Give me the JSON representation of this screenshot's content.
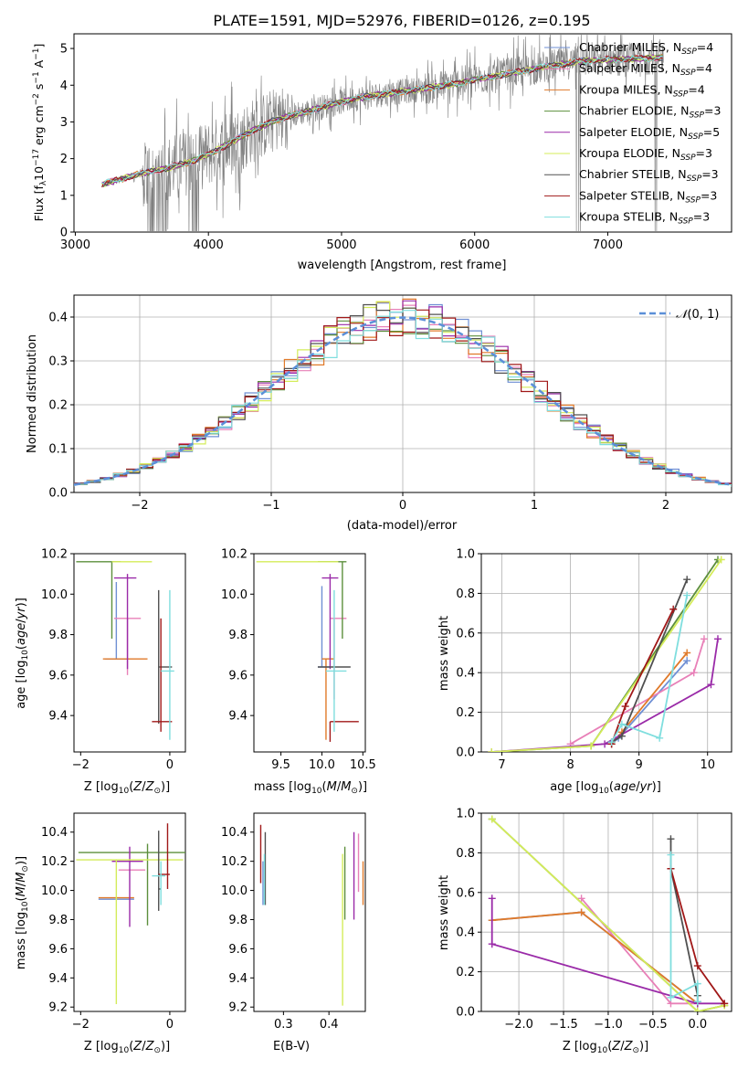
{
  "colors": {
    "chabrier_miles": "#6f8fd4",
    "salpeter_miles": "#e880b8",
    "kroupa_miles": "#e07a2a",
    "chabrier_elodie": "#5c8f3c",
    "salpeter_elodie": "#9a2aa8",
    "kroupa_elodie": "#d4ec5a",
    "chabrier_stelib": "#505050",
    "salpeter_stelib": "#a01818",
    "kroupa_stelib": "#7fdede",
    "data_spectrum": "#808080",
    "gaussian": "#5b8fd8"
  },
  "chart_data": [
    {
      "id": "spectrum",
      "type": "line",
      "title": "PLATE=1591, MJD=52976, FIBERID=0126, z=0.195",
      "xlabel": "wavelength [Angstrom, rest frame]",
      "ylabel": "Flux [f_λ 10^-17 erg cm^-2 s^-1 A^-1]",
      "xlim": [
        2990,
        7930
      ],
      "ylim": [
        0,
        5.4
      ],
      "xticks": [
        "3000",
        "4000",
        "5000",
        "6000",
        "7000"
      ],
      "yticks": [
        "0",
        "1",
        "2",
        "3",
        "4",
        "5"
      ],
      "grid": false,
      "legend_position": "top-right",
      "legend": [
        {
          "label": "Chabrier MILES, N",
          "sub": "SSP",
          "tail": "=4"
        },
        {
          "label": "Salpeter MILES, N",
          "sub": "SSP",
          "tail": "=4"
        },
        {
          "label": "Kroupa MILES, N",
          "sub": "SSP",
          "tail": "=4"
        },
        {
          "label": "Chabrier ELODIE, N",
          "sub": "SSP",
          "tail": "=3"
        },
        {
          "label": "Salpeter ELODIE, N",
          "sub": "SSP",
          "tail": "=5"
        },
        {
          "label": "Kroupa ELODIE, N",
          "sub": "SSP",
          "tail": "=3"
        },
        {
          "label": "Chabrier STELIB, N",
          "sub": "SSP",
          "tail": "=3"
        },
        {
          "label": "Salpeter STELIB, N",
          "sub": "SSP",
          "tail": "=3"
        },
        {
          "label": "Kroupa STELIB, N",
          "sub": "SSP",
          "tail": "=3"
        }
      ],
      "continuum": {
        "x": [
          3200,
          3350,
          3500,
          3700,
          3900,
          4100,
          4300,
          4500,
          4800,
          5000,
          5200,
          5500,
          5800,
          6000,
          6300,
          6600,
          6800,
          7000,
          7200,
          7400
        ],
        "y": [
          1.3,
          1.45,
          1.6,
          1.75,
          1.95,
          2.3,
          2.7,
          3.05,
          3.35,
          3.55,
          3.7,
          3.85,
          4.0,
          4.15,
          4.35,
          4.55,
          4.65,
          4.7,
          4.72,
          4.75
        ]
      }
    },
    {
      "id": "residuals",
      "type": "line",
      "xlabel": "(data-model)/error",
      "ylabel": "Normed distribution",
      "xlim": [
        -2.5,
        2.5
      ],
      "ylim": [
        0,
        0.45
      ],
      "xticks": [
        "−2",
        "−1",
        "0",
        "1",
        "2"
      ],
      "yticks": [
        "0.0",
        "0.1",
        "0.2",
        "0.3",
        "0.4"
      ],
      "grid": true,
      "legend_position": "top-right",
      "legend": [
        {
          "label": "𝒩(0, 1)"
        }
      ]
    },
    {
      "id": "age_vs_z",
      "type": "scatter",
      "xlabel": "Z [log10(Z/Z⊙)]",
      "ylabel": "age [log10(age/yr)]",
      "xlim": [
        -2.15,
        0.35
      ],
      "ylim": [
        9.22,
        10.2
      ],
      "xticks": [
        "−2",
        "0"
      ],
      "yticks": [
        "9.4",
        "9.6",
        "9.8",
        "10.0",
        "10.2"
      ],
      "grid": false,
      "points": [
        {
          "m": "chabrier_miles",
          "x": -1.2,
          "y": 9.68,
          "xe": [
            0.25,
            0.25
          ],
          "ye": [
            0.0,
            0.38
          ]
        },
        {
          "m": "salpeter_miles",
          "x": -0.95,
          "y": 9.88,
          "xe": [
            0.3,
            0.3
          ],
          "ye": [
            0.28,
            0.0
          ]
        },
        {
          "m": "kroupa_miles",
          "x": -1.1,
          "y": 9.68,
          "xe": [
            0.4,
            0.6
          ],
          "ye": [
            0.0,
            0.0
          ]
        },
        {
          "m": "chabrier_elodie",
          "x": -1.3,
          "y": 10.16,
          "xe": [
            0.8,
            0.2
          ],
          "ye": [
            0.38,
            0.0
          ]
        },
        {
          "m": "salpeter_elodie",
          "x": -0.95,
          "y": 10.08,
          "xe": [
            0.3,
            0.2
          ],
          "ye": [
            0.45,
            0.02
          ]
        },
        {
          "m": "kroupa_elodie",
          "x": -0.7,
          "y": 10.16,
          "xe": [
            0.6,
            0.3
          ],
          "ye": [
            0.0,
            0.0
          ]
        },
        {
          "m": "chabrier_stelib",
          "x": -0.25,
          "y": 9.64,
          "xe": [
            0.0,
            0.3
          ],
          "ye": [
            0.28,
            0.38
          ]
        },
        {
          "m": "salpeter_stelib",
          "x": -0.2,
          "y": 9.37,
          "xe": [
            0.2,
            0.25
          ],
          "ye": [
            0.05,
            0.51
          ]
        },
        {
          "m": "kroupa_stelib",
          "x": 0.0,
          "y": 9.62,
          "xe": [
            0.2,
            0.1
          ],
          "ye": [
            0.34,
            0.4
          ]
        }
      ]
    },
    {
      "id": "age_vs_mass",
      "type": "scatter",
      "xlabel": "mass [log10(M/M⊙)]",
      "ylabel": "",
      "xlim": [
        9.17,
        10.53
      ],
      "ylim": [
        9.22,
        10.2
      ],
      "xticks": [
        "9.5",
        "10.0",
        "10.5"
      ],
      "yticks": [
        "9.4",
        "9.6",
        "9.8",
        "10.0",
        "10.2"
      ],
      "grid": false,
      "points": [
        {
          "m": "chabrier_miles",
          "x": 10.0,
          "y": 9.64,
          "xe": [
            0.05,
            0.1
          ],
          "ye": [
            0.0,
            0.4
          ]
        },
        {
          "m": "salpeter_miles",
          "x": 10.15,
          "y": 9.88,
          "xe": [
            0.05,
            0.15
          ],
          "ye": [
            0.4,
            0.0
          ]
        },
        {
          "m": "kroupa_miles",
          "x": 10.05,
          "y": 9.68,
          "xe": [
            0.05,
            0.1
          ],
          "ye": [
            0.4,
            0.0
          ]
        },
        {
          "m": "chabrier_elodie",
          "x": 10.25,
          "y": 10.16,
          "xe": [
            0.3,
            0.05
          ],
          "ye": [
            0.38,
            0.0
          ]
        },
        {
          "m": "salpeter_elodie",
          "x": 10.1,
          "y": 10.08,
          "xe": [
            0.1,
            0.1
          ],
          "ye": [
            0.45,
            0.02
          ]
        },
        {
          "m": "kroupa_elodie",
          "x": 10.2,
          "y": 10.16,
          "xe": [
            1.0,
            0.0
          ],
          "ye": [
            0.0,
            0.0
          ]
        },
        {
          "m": "chabrier_stelib",
          "x": 10.1,
          "y": 9.64,
          "xe": [
            0.15,
            0.25
          ],
          "ye": [
            0.0,
            0.0
          ]
        },
        {
          "m": "salpeter_stelib",
          "x": 10.1,
          "y": 9.37,
          "xe": [
            0.0,
            0.35
          ],
          "ye": [
            0.1,
            0.0
          ]
        },
        {
          "m": "kroupa_stelib",
          "x": 10.15,
          "y": 9.62,
          "xe": [
            0.1,
            0.15
          ],
          "ye": [
            0.3,
            0.4
          ]
        }
      ]
    },
    {
      "id": "mass_weight_vs_age",
      "type": "line",
      "xlabel": "age [log10(age/yr)]",
      "ylabel": "mass weight",
      "xlim": [
        6.7,
        10.35
      ],
      "ylim": [
        0,
        1.0
      ],
      "xticks": [
        "7",
        "8",
        "9",
        "10"
      ],
      "yticks": [
        "0.0",
        "0.2",
        "0.4",
        "0.6",
        "0.8",
        "1.0"
      ],
      "grid": true,
      "series": [
        {
          "m": "chabrier_miles",
          "x": [
            8.6,
            8.7,
            9.7
          ],
          "y": [
            0.04,
            0.07,
            0.46
          ]
        },
        {
          "m": "salpeter_miles",
          "x": [
            8.0,
            9.8,
            9.95
          ],
          "y": [
            0.04,
            0.4,
            0.57
          ]
        },
        {
          "m": "kroupa_miles",
          "x": [
            8.6,
            8.75,
            9.7
          ],
          "y": [
            0.04,
            0.1,
            0.5
          ]
        },
        {
          "m": "chabrier_elodie",
          "x": [
            6.85,
            8.3,
            10.15
          ],
          "y": [
            0.0,
            0.03,
            0.97
          ]
        },
        {
          "m": "salpeter_elodie",
          "x": [
            6.85,
            8.5,
            10.05,
            10.15
          ],
          "y": [
            0.0,
            0.04,
            0.34,
            0.57
          ]
        },
        {
          "m": "kroupa_elodie",
          "x": [
            6.85,
            8.3,
            10.2
          ],
          "y": [
            0.0,
            0.03,
            0.97
          ]
        },
        {
          "m": "chabrier_stelib",
          "x": [
            8.6,
            8.75,
            9.7
          ],
          "y": [
            0.05,
            0.08,
            0.87
          ]
        },
        {
          "m": "salpeter_stelib",
          "x": [
            8.6,
            8.8,
            9.5
          ],
          "y": [
            0.04,
            0.23,
            0.72
          ]
        },
        {
          "m": "kroupa_stelib",
          "x": [
            8.6,
            8.75,
            9.3,
            9.7
          ],
          "y": [
            0.05,
            0.14,
            0.07,
            0.79
          ]
        }
      ]
    },
    {
      "id": "mass_vs_z",
      "type": "scatter",
      "xlabel": "Z [log10(Z/Z⊙)]",
      "ylabel": "mass [log10(M/M⊙)]",
      "xlim": [
        -2.15,
        0.35
      ],
      "ylim": [
        9.17,
        10.53
      ],
      "xticks": [
        "−2",
        "0"
      ],
      "yticks": [
        "9.2",
        "9.4",
        "9.6",
        "9.8",
        "10.0",
        "10.2",
        "10.4"
      ],
      "grid": false,
      "points": [
        {
          "m": "chabrier_miles",
          "x": -1.1,
          "y": 9.94,
          "xe": [
            0.5,
            0.3
          ],
          "ye": [
            0.0,
            0.0
          ]
        },
        {
          "m": "salpeter_miles",
          "x": -0.75,
          "y": 10.14,
          "xe": [
            0.4,
            0.2
          ],
          "ye": [
            0.0,
            0.0
          ]
        },
        {
          "m": "kroupa_miles",
          "x": -1.1,
          "y": 9.95,
          "xe": [
            0.5,
            0.3
          ],
          "ye": [
            0.0,
            0.0
          ]
        },
        {
          "m": "chabrier_elodie",
          "x": -0.5,
          "y": 10.26,
          "xe": [
            1.55,
            0.85
          ],
          "ye": [
            0.5,
            0.06
          ]
        },
        {
          "m": "salpeter_elodie",
          "x": -0.9,
          "y": 10.2,
          "xe": [
            0.4,
            0.3
          ],
          "ye": [
            0.45,
            0.1
          ]
        },
        {
          "m": "kroupa_elodie",
          "x": -1.2,
          "y": 10.21,
          "xe": [
            0.9,
            1.5
          ],
          "ye": [
            0.99,
            0.0
          ]
        },
        {
          "m": "chabrier_stelib",
          "x": -0.25,
          "y": 10.01,
          "xe": [
            0.0,
            0.05
          ],
          "ye": [
            0.15,
            0.4
          ]
        },
        {
          "m": "salpeter_stelib",
          "x": -0.05,
          "y": 10.11,
          "xe": [
            0.2,
            0.05
          ],
          "ye": [
            0.1,
            0.35
          ]
        },
        {
          "m": "kroupa_stelib",
          "x": -0.2,
          "y": 10.1,
          "xe": [
            0.2,
            0.1
          ],
          "ye": [
            0.2,
            0.1
          ]
        }
      ]
    },
    {
      "id": "mass_vs_ebv",
      "type": "scatter",
      "xlabel": "E(B-V)",
      "ylabel": "",
      "xlim": [
        0.235,
        0.48
      ],
      "ylim": [
        9.17,
        10.53
      ],
      "xticks": [
        "0.3",
        "0.4"
      ],
      "yticks": [
        "9.2",
        "9.4",
        "9.6",
        "9.8",
        "10.0",
        "10.2",
        "10.4"
      ],
      "grid": false,
      "points": [
        {
          "m": "chabrier_miles",
          "x": 0.255,
          "y": 10.0,
          "xe": [
            0.0,
            0.0
          ],
          "ye": [
            0.1,
            0.2
          ]
        },
        {
          "m": "salpeter_miles",
          "x": 0.465,
          "y": 10.14,
          "xe": [
            0.0,
            0.0
          ],
          "ye": [
            0.15,
            0.25
          ]
        },
        {
          "m": "kroupa_miles",
          "x": 0.475,
          "y": 10.05,
          "xe": [
            0.0,
            0.0
          ],
          "ye": [
            0.15,
            0.15
          ]
        },
        {
          "m": "chabrier_elodie",
          "x": 0.435,
          "y": 10.2,
          "xe": [
            0.0,
            0.0
          ],
          "ye": [
            0.4,
            0.1
          ]
        },
        {
          "m": "salpeter_elodie",
          "x": 0.455,
          "y": 10.1,
          "xe": [
            0.0,
            0.0
          ],
          "ye": [
            0.3,
            0.3
          ]
        },
        {
          "m": "kroupa_elodie",
          "x": 0.43,
          "y": 10.2,
          "xe": [
            0.0,
            0.0
          ],
          "ye": [
            0.99,
            0.05
          ]
        },
        {
          "m": "chabrier_stelib",
          "x": 0.26,
          "y": 10.1,
          "xe": [
            0.0,
            0.0
          ],
          "ye": [
            0.2,
            0.3
          ]
        },
        {
          "m": "salpeter_stelib",
          "x": 0.25,
          "y": 10.2,
          "xe": [
            0.0,
            0.0
          ],
          "ye": [
            0.15,
            0.25
          ]
        },
        {
          "m": "kroupa_stelib",
          "x": 0.258,
          "y": 10.05,
          "xe": [
            0.0,
            0.0
          ],
          "ye": [
            0.15,
            0.2
          ]
        }
      ]
    },
    {
      "id": "mass_weight_vs_z",
      "type": "line",
      "xlabel": "Z [log10(Z/Z⊙)]",
      "ylabel": "mass weight",
      "xlim": [
        -2.42,
        0.38
      ],
      "ylim": [
        0,
        1.0
      ],
      "xticks": [
        "−2.0",
        "−1.5",
        "−1.0",
        "−0.5",
        "0.0"
      ],
      "yticks": [
        "0.0",
        "0.2",
        "0.4",
        "0.6",
        "0.8",
        "1.0"
      ],
      "grid": true,
      "series": [
        {
          "m": "chabrier_miles",
          "x": [
            -2.3,
            -1.3,
            0.0
          ],
          "y": [
            0.46,
            0.5,
            0.04
          ]
        },
        {
          "m": "salpeter_miles",
          "x": [
            -1.3,
            -0.3,
            0.0
          ],
          "y": [
            0.57,
            0.04,
            0.04
          ]
        },
        {
          "m": "kroupa_miles",
          "x": [
            -2.3,
            -1.3,
            0.0
          ],
          "y": [
            0.46,
            0.5,
            0.04
          ]
        },
        {
          "m": "chabrier_elodie",
          "x": [
            -2.3,
            0.0,
            0.3
          ],
          "y": [
            0.97,
            0.0,
            0.03
          ]
        },
        {
          "m": "salpeter_elodie",
          "x": [
            -2.3,
            -2.3,
            0.0,
            0.3
          ],
          "y": [
            0.57,
            0.34,
            0.04,
            0.04
          ]
        },
        {
          "m": "kroupa_elodie",
          "x": [
            -2.3,
            0.0,
            0.3
          ],
          "y": [
            0.97,
            0.0,
            0.03
          ]
        },
        {
          "m": "chabrier_stelib",
          "x": [
            -0.3,
            -0.3,
            0.0,
            0.0
          ],
          "y": [
            0.87,
            0.72,
            0.08,
            0.05
          ]
        },
        {
          "m": "salpeter_stelib",
          "x": [
            -0.3,
            0.0,
            0.3
          ],
          "y": [
            0.72,
            0.23,
            0.04
          ]
        },
        {
          "m": "kroupa_stelib",
          "x": [
            -0.3,
            -0.3,
            0.0,
            0.0
          ],
          "y": [
            0.79,
            0.07,
            0.14,
            0.05
          ]
        }
      ]
    }
  ]
}
